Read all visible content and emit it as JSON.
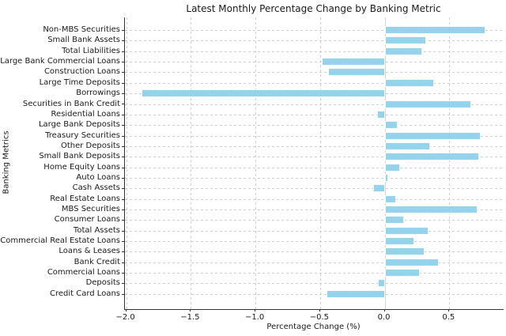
{
  "chart_data": {
    "type": "bar",
    "orientation": "horizontal",
    "title": "Latest Monthly Percentage Change by Banking Metric",
    "xlabel": "Percentage Change (%)",
    "ylabel": "Banking Metrics",
    "categories": [
      "Non-MBS Securities",
      "Small Bank Assets",
      "Total Liabilities",
      "Large Bank Commercial Loans",
      "Construction Loans",
      "Large Time Deposits",
      "Borrowings",
      "Securities in Bank Credit",
      "Residential Loans",
      "Large Bank Deposits",
      "Treasury Securities",
      "Other Deposits",
      "Small Bank Deposits",
      "Home Equity Loans",
      "Auto Loans",
      "Cash Assets",
      "Real Estate Loans",
      "MBS Securities",
      "Consumer Loans",
      "Total Assets",
      "Commercial Real Estate Loans",
      "Loans & Leases",
      "Bank Credit",
      "Commercial Loans",
      "Deposits",
      "Credit Card Loans"
    ],
    "values": [
      0.78,
      0.32,
      0.29,
      -0.49,
      -0.44,
      0.38,
      -1.88,
      0.67,
      -0.06,
      0.1,
      0.74,
      0.35,
      0.73,
      0.12,
      0.03,
      -0.09,
      0.09,
      0.72,
      0.15,
      0.34,
      0.23,
      0.31,
      0.42,
      0.27,
      -0.05,
      -0.45
    ],
    "x_ticks": [
      -2.0,
      -1.5,
      -1.0,
      -0.5,
      0.0,
      0.5
    ],
    "x_tick_labels": [
      "−2.0",
      "−1.5",
      "−1.0",
      "−0.5",
      "0.0",
      "0.5"
    ],
    "xlim": [
      -2.01,
      0.92
    ],
    "grid": true,
    "legend": null,
    "bar_color": "#87CEEB",
    "grid_color": "#cfcfcf",
    "axis_color": "#333333",
    "background": "#ffffff"
  }
}
